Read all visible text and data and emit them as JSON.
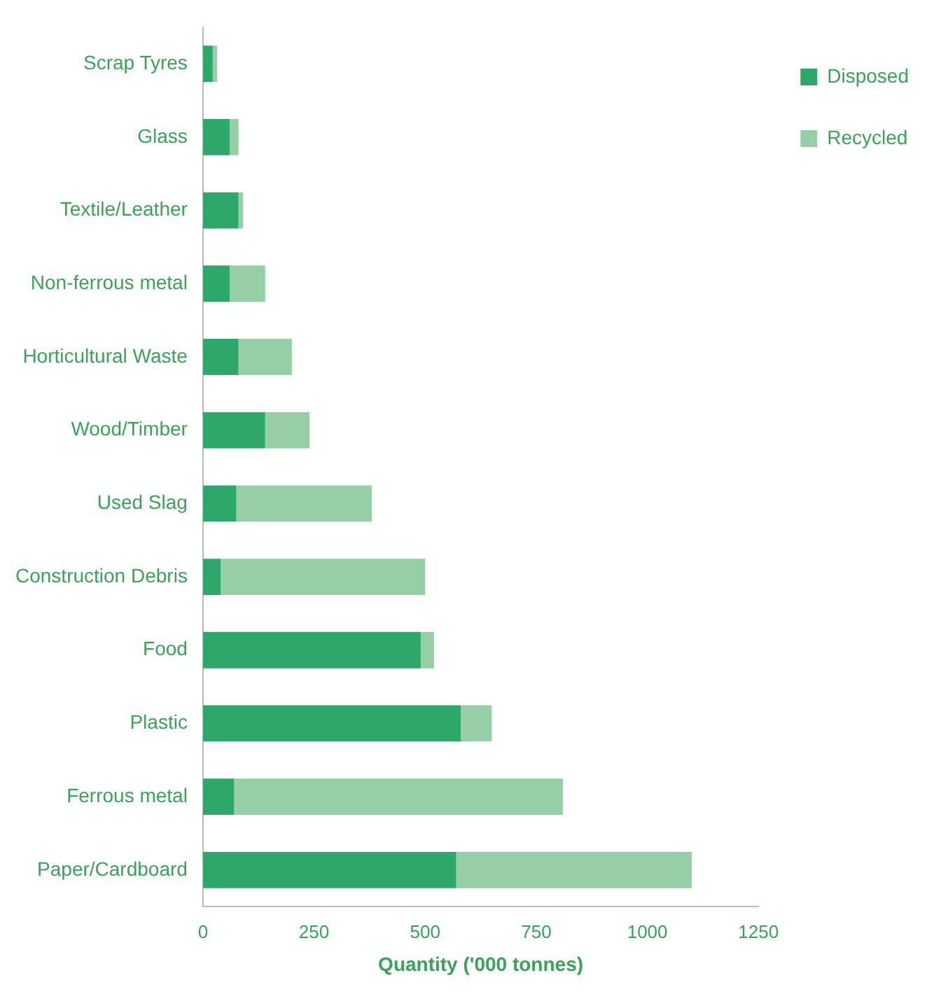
{
  "chart_data": {
    "type": "bar",
    "orientation": "horizontal",
    "stacked": true,
    "categories": [
      "Scrap Tyres",
      "Glass",
      "Textile/Leather",
      "Non-ferrous metal",
      "Horticultural Waste",
      "Wood/Timber",
      "Used Slag",
      "Construction Debris",
      "Food",
      "Plastic",
      "Ferrous metal",
      "Paper/Cardboard"
    ],
    "series": [
      {
        "name": "Disposed",
        "color": "#2ea86a",
        "values": [
          22,
          60,
          80,
          60,
          80,
          140,
          75,
          40,
          490,
          580,
          70,
          570
        ]
      },
      {
        "name": "Recycled",
        "color": "#96cfa6",
        "values": [
          10,
          20,
          10,
          80,
          120,
          100,
          305,
          460,
          30,
          70,
          740,
          530
        ]
      }
    ],
    "xlabel": "Quantity ('000 tonnes)",
    "xlim": [
      0,
      1250
    ],
    "xticks": [
      0,
      250,
      500,
      750,
      1000,
      1250
    ],
    "grid": false,
    "legend": "top right"
  }
}
